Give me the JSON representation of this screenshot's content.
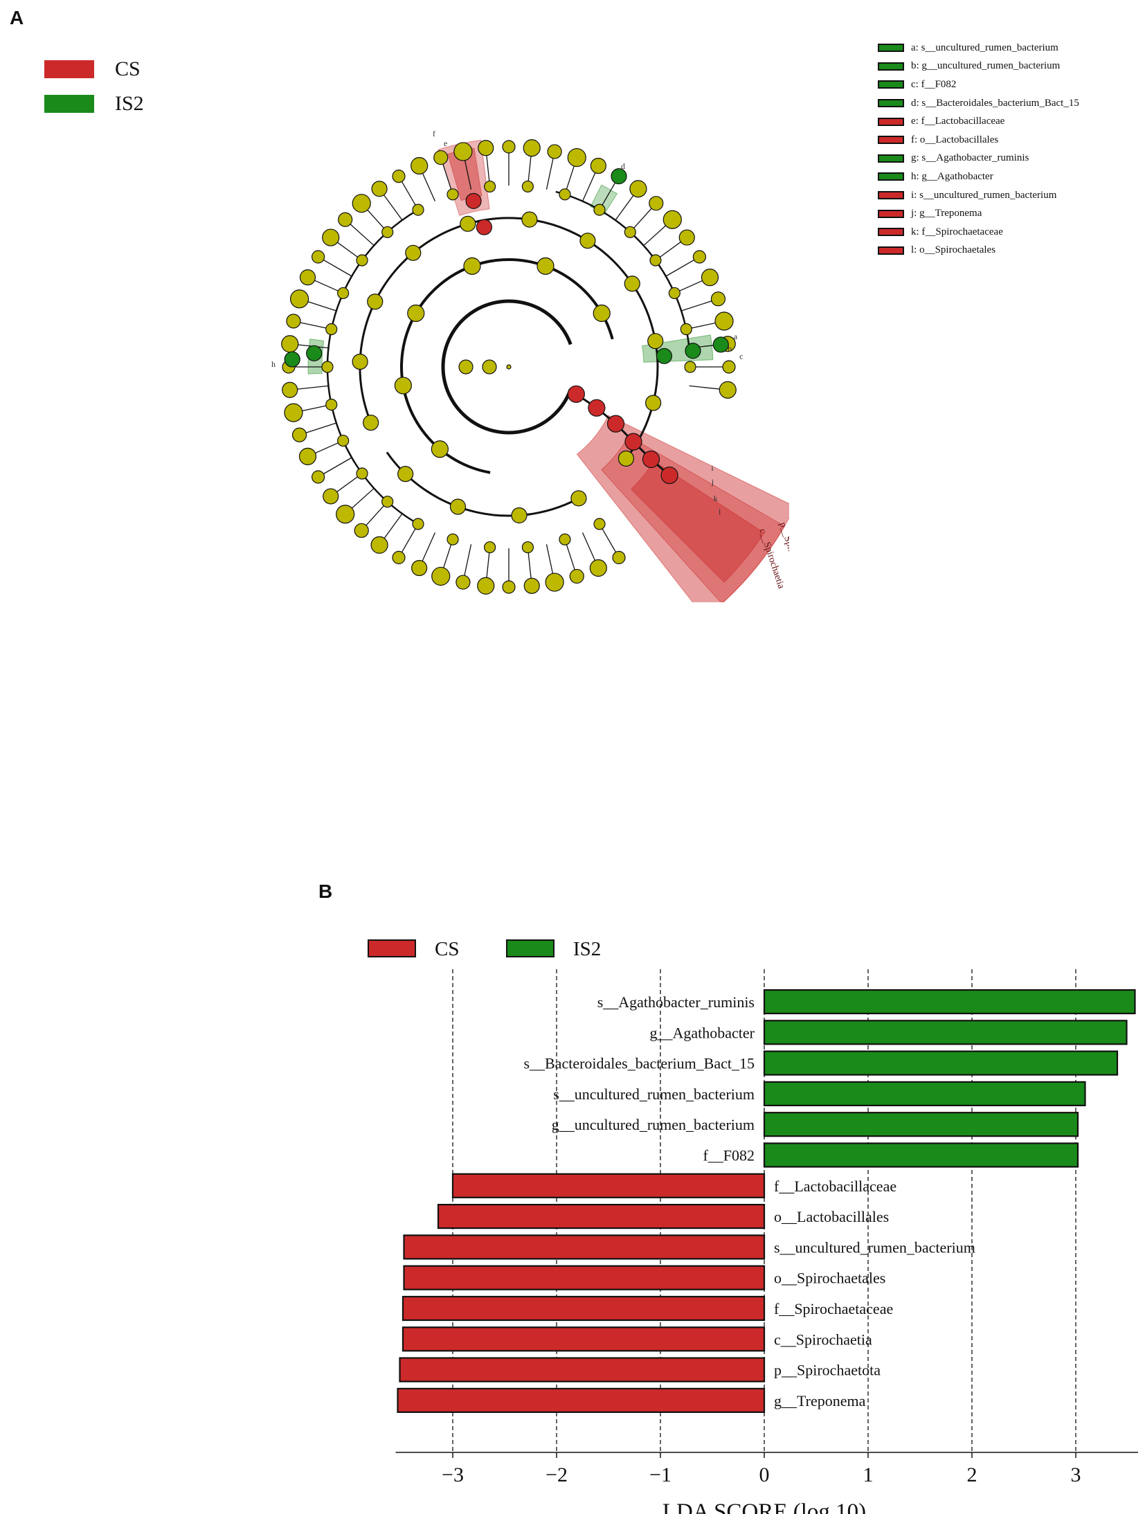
{
  "panel_labels": {
    "a": "A",
    "b": "B"
  },
  "colors": {
    "CS": "#cc2a2a",
    "IS2": "#1a8a1a",
    "node": "#bdb800",
    "edge": "#111111"
  },
  "panel_a_legend": [
    {
      "label": "CS",
      "color": "#cc2a2a"
    },
    {
      "label": "IS2",
      "color": "#1a8a1a"
    }
  ],
  "cladogram_key": [
    {
      "letter": "a",
      "text": "a: s__uncultured_rumen_bacterium",
      "group": "IS2"
    },
    {
      "letter": "b",
      "text": "b: g__uncultured_rumen_bacterium",
      "group": "IS2"
    },
    {
      "letter": "c",
      "text": "c: f__F082",
      "group": "IS2"
    },
    {
      "letter": "d",
      "text": "d: s__Bacteroidales_bacterium_Bact_15",
      "group": "IS2"
    },
    {
      "letter": "e",
      "text": "e: f__Lactobacillaceae",
      "group": "CS"
    },
    {
      "letter": "f",
      "text": "f: o__Lactobacillales",
      "group": "CS"
    },
    {
      "letter": "g",
      "text": "g: s__Agathobacter_ruminis",
      "group": "IS2"
    },
    {
      "letter": "h",
      "text": "h: g__Agathobacter",
      "group": "IS2"
    },
    {
      "letter": "i",
      "text": "i: s__uncultured_rumen_bacterium",
      "group": "CS"
    },
    {
      "letter": "j",
      "text": "j: g__Treponema",
      "group": "CS"
    },
    {
      "letter": "k",
      "text": "k: f__Spirochaetaceae",
      "group": "CS"
    },
    {
      "letter": "l",
      "text": "l: o__Spirochaetales",
      "group": "CS"
    }
  ],
  "cladogram_labels": {
    "phylum": "p__Spirochaetota",
    "class": "c__Spirochaetia"
  },
  "chart_data": {
    "type": "bar",
    "orientation": "horizontal",
    "xlabel": "LDA SCORE (log 10)",
    "xlim": [
      -3.55,
      3.6
    ],
    "xticks": [
      -3,
      -2,
      -1,
      0,
      1,
      2,
      3
    ],
    "xtick_labels": [
      "−3",
      "−2",
      "−1",
      "0",
      "1",
      "2",
      "3"
    ],
    "grid": "vertical dashed",
    "legend": [
      {
        "name": "CS",
        "color": "#cc2a2a"
      },
      {
        "name": "IS2",
        "color": "#1a8a1a"
      }
    ],
    "legend_position": "top-left",
    "categories": [
      "s__Agathobacter_ruminis",
      "g__Agathobacter",
      "s__Bacteroidales_bacterium_Bact_15",
      "s__uncultured_rumen_bacterium",
      "g__uncultured_rumen_bacterium",
      "f__F082",
      "f__Lactobacillaceae",
      "o__Lactobacillales",
      "s__uncultured_rumen_bacterium",
      "o__Spirochaetales",
      "f__Spirochaetaceae",
      "c__Spirochaetia",
      "p__Spirochaetota",
      "g__Treponema"
    ],
    "values": [
      3.57,
      3.49,
      3.4,
      3.09,
      3.02,
      3.02,
      -3.0,
      -3.14,
      -3.47,
      -3.47,
      -3.48,
      -3.48,
      -3.51,
      -3.53
    ],
    "groups": [
      "IS2",
      "IS2",
      "IS2",
      "IS2",
      "IS2",
      "IS2",
      "CS",
      "CS",
      "CS",
      "CS",
      "CS",
      "CS",
      "CS",
      "CS"
    ]
  }
}
